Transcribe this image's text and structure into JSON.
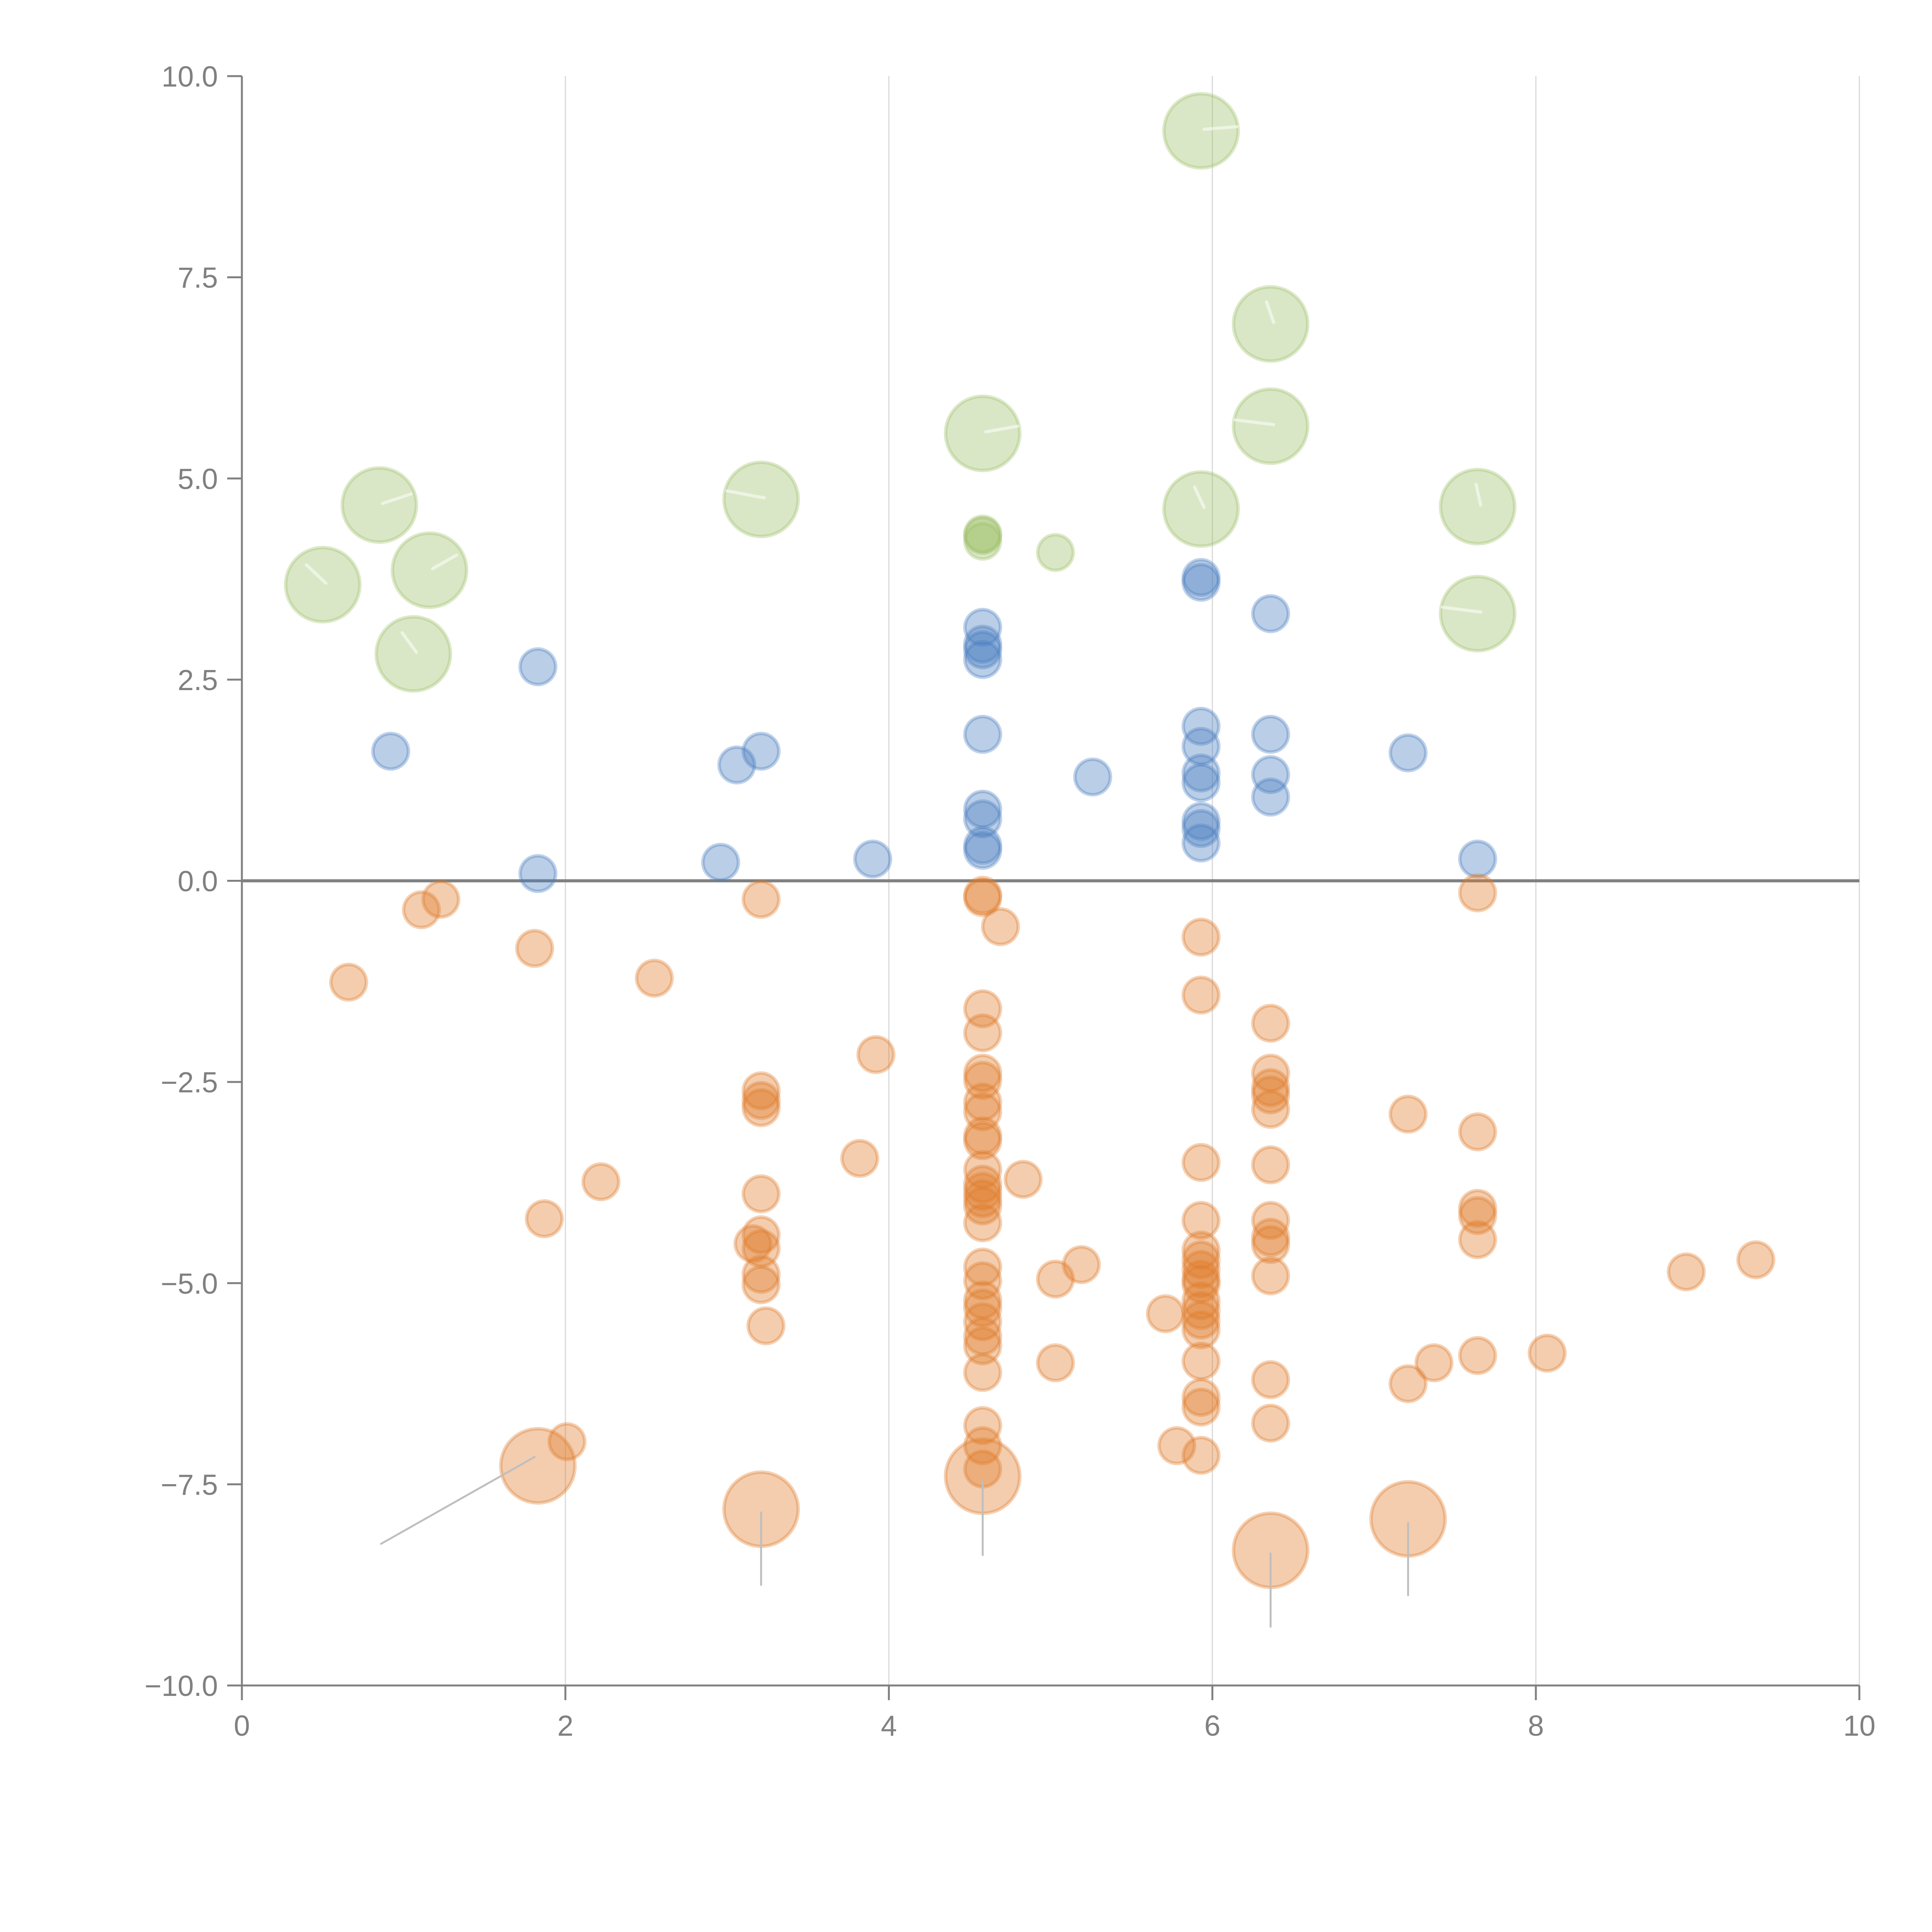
{
  "chart_data": {
    "type": "scatter",
    "title": "",
    "xlabel": "",
    "ylabel": "",
    "xlim": [
      0,
      10
    ],
    "ylim": [
      -10,
      10
    ],
    "x_ticks": [
      "0",
      "2",
      "4",
      "6",
      "8",
      "10"
    ],
    "x_tick_values": [
      0,
      2,
      4,
      6,
      8,
      10
    ],
    "y_ticks": [
      "−10.0",
      "−7.5",
      "−5.0",
      "−2.5",
      "0.0",
      "2.5",
      "5.0",
      "7.5",
      "10.0"
    ],
    "y_tick_values": [
      -10,
      -7.5,
      -5,
      -2.5,
      0,
      2.5,
      5,
      7.5,
      10
    ],
    "vertical_grid": true,
    "horizontal_grid": false,
    "zero_line": true,
    "legend": "none",
    "series": [
      {
        "name": "green",
        "color": "#9dc06a",
        "points": [
          {
            "x": 0.5,
            "y": 3.68,
            "size": "large"
          },
          {
            "x": 0.85,
            "y": 4.67,
            "size": "large"
          },
          {
            "x": 1.16,
            "y": 3.86,
            "size": "large"
          },
          {
            "x": 1.06,
            "y": 2.82,
            "size": "large"
          },
          {
            "x": 3.21,
            "y": 4.74,
            "size": "large"
          },
          {
            "x": 4.58,
            "y": 5.56,
            "size": "large"
          },
          {
            "x": 4.58,
            "y": 4.29,
            "size": "small"
          },
          {
            "x": 4.58,
            "y": 4.22,
            "size": "small"
          },
          {
            "x": 4.58,
            "y": 4.31,
            "size": "small"
          },
          {
            "x": 5.03,
            "y": 4.08,
            "size": "small"
          },
          {
            "x": 5.93,
            "y": 9.32,
            "size": "large"
          },
          {
            "x": 5.93,
            "y": 4.62,
            "size": "large"
          },
          {
            "x": 6.36,
            "y": 6.92,
            "size": "large"
          },
          {
            "x": 6.36,
            "y": 5.65,
            "size": "large"
          },
          {
            "x": 7.64,
            "y": 4.65,
            "size": "large"
          },
          {
            "x": 7.64,
            "y": 3.32,
            "size": "large"
          }
        ]
      },
      {
        "name": "blue",
        "color": "#4a7fc1",
        "points": [
          {
            "x": 0.92,
            "y": 1.61,
            "size": "small"
          },
          {
            "x": 1.83,
            "y": 2.66,
            "size": "small"
          },
          {
            "x": 1.83,
            "y": 0.09,
            "size": "small"
          },
          {
            "x": 2.96,
            "y": 0.23,
            "size": "small"
          },
          {
            "x": 3.06,
            "y": 1.44,
            "size": "small"
          },
          {
            "x": 3.21,
            "y": 1.61,
            "size": "small"
          },
          {
            "x": 3.9,
            "y": 0.27,
            "size": "small"
          },
          {
            "x": 4.58,
            "y": 3.15,
            "size": "small"
          },
          {
            "x": 4.58,
            "y": 2.94,
            "size": "small"
          },
          {
            "x": 4.58,
            "y": 2.87,
            "size": "small"
          },
          {
            "x": 4.58,
            "y": 2.75,
            "size": "small"
          },
          {
            "x": 4.58,
            "y": 1.82,
            "size": "small"
          },
          {
            "x": 4.58,
            "y": 0.89,
            "size": "small"
          },
          {
            "x": 4.58,
            "y": 0.77,
            "size": "small"
          },
          {
            "x": 4.58,
            "y": 0.44,
            "size": "small"
          },
          {
            "x": 4.58,
            "y": 0.38,
            "size": "small"
          },
          {
            "x": 5.26,
            "y": 1.29,
            "size": "small"
          },
          {
            "x": 5.93,
            "y": 3.77,
            "size": "small"
          },
          {
            "x": 5.93,
            "y": 3.71,
            "size": "small"
          },
          {
            "x": 5.93,
            "y": 1.92,
            "size": "small"
          },
          {
            "x": 5.93,
            "y": 1.67,
            "size": "small"
          },
          {
            "x": 5.93,
            "y": 1.34,
            "size": "small"
          },
          {
            "x": 5.93,
            "y": 1.22,
            "size": "small"
          },
          {
            "x": 5.93,
            "y": 0.74,
            "size": "small"
          },
          {
            "x": 5.93,
            "y": 0.65,
            "size": "small"
          },
          {
            "x": 5.93,
            "y": 0.47,
            "size": "small"
          },
          {
            "x": 6.36,
            "y": 3.32,
            "size": "small"
          },
          {
            "x": 6.36,
            "y": 1.82,
            "size": "small"
          },
          {
            "x": 6.36,
            "y": 1.32,
            "size": "small"
          },
          {
            "x": 6.36,
            "y": 1.04,
            "size": "small"
          },
          {
            "x": 7.21,
            "y": 1.59,
            "size": "small"
          },
          {
            "x": 7.64,
            "y": 0.27,
            "size": "small"
          }
        ]
      },
      {
        "name": "orange",
        "color": "#e07b2a",
        "points": [
          {
            "x": 0.66,
            "y": -1.26,
            "size": "small"
          },
          {
            "x": 1.11,
            "y": -0.36,
            "size": "small"
          },
          {
            "x": 1.23,
            "y": -0.23,
            "size": "small"
          },
          {
            "x": 1.81,
            "y": -0.84,
            "size": "small"
          },
          {
            "x": 1.87,
            "y": -4.2,
            "size": "small"
          },
          {
            "x": 2.01,
            "y": -6.97,
            "size": "small"
          },
          {
            "x": 2.22,
            "y": -3.74,
            "size": "small"
          },
          {
            "x": 2.55,
            "y": -1.21,
            "size": "small"
          },
          {
            "x": 3.21,
            "y": -0.23,
            "size": "small"
          },
          {
            "x": 3.21,
            "y": -2.61,
            "size": "small"
          },
          {
            "x": 3.21,
            "y": -2.73,
            "size": "small"
          },
          {
            "x": 3.21,
            "y": -2.82,
            "size": "small"
          },
          {
            "x": 3.21,
            "y": -3.89,
            "size": "small"
          },
          {
            "x": 3.21,
            "y": -4.4,
            "size": "small"
          },
          {
            "x": 3.16,
            "y": -4.51,
            "size": "small"
          },
          {
            "x": 3.21,
            "y": -4.57,
            "size": "small"
          },
          {
            "x": 3.21,
            "y": -4.89,
            "size": "small"
          },
          {
            "x": 3.21,
            "y": -5.02,
            "size": "small"
          },
          {
            "x": 3.24,
            "y": -5.53,
            "size": "small"
          },
          {
            "x": 3.82,
            "y": -3.45,
            "size": "small"
          },
          {
            "x": 3.92,
            "y": -2.16,
            "size": "small"
          },
          {
            "x": 4.58,
            "y": -0.18,
            "size": "small"
          },
          {
            "x": 4.58,
            "y": -0.21,
            "size": "small"
          },
          {
            "x": 4.69,
            "y": -0.57,
            "size": "small"
          },
          {
            "x": 4.58,
            "y": -1.59,
            "size": "small"
          },
          {
            "x": 4.58,
            "y": -1.89,
            "size": "small"
          },
          {
            "x": 4.58,
            "y": -2.39,
            "size": "small"
          },
          {
            "x": 4.58,
            "y": -2.48,
            "size": "small"
          },
          {
            "x": 4.58,
            "y": -2.75,
            "size": "small"
          },
          {
            "x": 4.58,
            "y": -2.87,
            "size": "small"
          },
          {
            "x": 4.58,
            "y": -3.17,
            "size": "small"
          },
          {
            "x": 4.58,
            "y": -3.23,
            "size": "small"
          },
          {
            "x": 4.58,
            "y": -3.59,
            "size": "small"
          },
          {
            "x": 4.58,
            "y": -3.77,
            "size": "small"
          },
          {
            "x": 4.58,
            "y": -3.86,
            "size": "small"
          },
          {
            "x": 4.58,
            "y": -3.95,
            "size": "small"
          },
          {
            "x": 4.58,
            "y": -4.04,
            "size": "small"
          },
          {
            "x": 4.58,
            "y": -4.25,
            "size": "small"
          },
          {
            "x": 4.83,
            "y": -3.71,
            "size": "small"
          },
          {
            "x": 4.58,
            "y": -4.8,
            "size": "small"
          },
          {
            "x": 4.58,
            "y": -4.97,
            "size": "small"
          },
          {
            "x": 4.58,
            "y": -5.21,
            "size": "small"
          },
          {
            "x": 4.58,
            "y": -5.31,
            "size": "small"
          },
          {
            "x": 4.58,
            "y": -5.48,
            "size": "small"
          },
          {
            "x": 4.58,
            "y": -5.66,
            "size": "small"
          },
          {
            "x": 4.58,
            "y": -5.78,
            "size": "small"
          },
          {
            "x": 4.58,
            "y": -6.11,
            "size": "small"
          },
          {
            "x": 4.58,
            "y": -6.77,
            "size": "small"
          },
          {
            "x": 4.58,
            "y": -7.02,
            "size": "small"
          },
          {
            "x": 4.58,
            "y": -7.31,
            "size": "small"
          },
          {
            "x": 5.03,
            "y": -4.95,
            "size": "small"
          },
          {
            "x": 5.03,
            "y": -5.99,
            "size": "small"
          },
          {
            "x": 5.19,
            "y": -4.77,
            "size": "small"
          },
          {
            "x": 5.71,
            "y": -5.38,
            "size": "small"
          },
          {
            "x": 5.78,
            "y": -7.02,
            "size": "small"
          },
          {
            "x": 5.93,
            "y": -0.7,
            "size": "small"
          },
          {
            "x": 5.93,
            "y": -1.42,
            "size": "small"
          },
          {
            "x": 5.93,
            "y": -3.5,
            "size": "small"
          },
          {
            "x": 5.93,
            "y": -4.22,
            "size": "small"
          },
          {
            "x": 5.93,
            "y": -4.59,
            "size": "small"
          },
          {
            "x": 5.93,
            "y": -4.71,
            "size": "small"
          },
          {
            "x": 5.93,
            "y": -4.83,
            "size": "small"
          },
          {
            "x": 5.93,
            "y": -4.95,
            "size": "small"
          },
          {
            "x": 5.93,
            "y": -5.01,
            "size": "small"
          },
          {
            "x": 5.93,
            "y": -5.22,
            "size": "small"
          },
          {
            "x": 5.93,
            "y": -5.34,
            "size": "small"
          },
          {
            "x": 5.93,
            "y": -5.46,
            "size": "small"
          },
          {
            "x": 5.93,
            "y": -5.58,
            "size": "small"
          },
          {
            "x": 5.93,
            "y": -5.97,
            "size": "small"
          },
          {
            "x": 5.93,
            "y": -6.42,
            "size": "small"
          },
          {
            "x": 5.93,
            "y": -6.54,
            "size": "small"
          },
          {
            "x": 5.93,
            "y": -7.14,
            "size": "small"
          },
          {
            "x": 6.36,
            "y": -1.77,
            "size": "small"
          },
          {
            "x": 6.36,
            "y": -2.39,
            "size": "small"
          },
          {
            "x": 6.36,
            "y": -2.57,
            "size": "small"
          },
          {
            "x": 6.36,
            "y": -2.66,
            "size": "small"
          },
          {
            "x": 6.36,
            "y": -2.84,
            "size": "small"
          },
          {
            "x": 6.36,
            "y": -3.53,
            "size": "small"
          },
          {
            "x": 6.36,
            "y": -4.22,
            "size": "small"
          },
          {
            "x": 6.36,
            "y": -4.43,
            "size": "small"
          },
          {
            "x": 6.36,
            "y": -4.52,
            "size": "small"
          },
          {
            "x": 6.36,
            "y": -4.91,
            "size": "small"
          },
          {
            "x": 6.36,
            "y": -6.2,
            "size": "small"
          },
          {
            "x": 6.36,
            "y": -6.74,
            "size": "small"
          },
          {
            "x": 7.21,
            "y": -2.9,
            "size": "small"
          },
          {
            "x": 7.21,
            "y": -6.25,
            "size": "small"
          },
          {
            "x": 7.37,
            "y": -5.99,
            "size": "small"
          },
          {
            "x": 7.64,
            "y": -0.15,
            "size": "small"
          },
          {
            "x": 7.64,
            "y": -3.12,
            "size": "small"
          },
          {
            "x": 7.64,
            "y": -4.07,
            "size": "small"
          },
          {
            "x": 7.64,
            "y": -4.16,
            "size": "small"
          },
          {
            "x": 7.64,
            "y": -4.46,
            "size": "small"
          },
          {
            "x": 7.64,
            "y": -5.9,
            "size": "small"
          },
          {
            "x": 8.07,
            "y": -5.87,
            "size": "small"
          },
          {
            "x": 8.93,
            "y": -4.86,
            "size": "small"
          },
          {
            "x": 9.36,
            "y": -4.71,
            "size": "small"
          },
          {
            "x": 1.83,
            "y": -7.27,
            "size": "large"
          },
          {
            "x": 3.21,
            "y": -7.81,
            "size": "large"
          },
          {
            "x": 4.58,
            "y": -7.4,
            "size": "large"
          },
          {
            "x": 6.36,
            "y": -8.32,
            "size": "large"
          },
          {
            "x": 7.21,
            "y": -7.93,
            "size": "large"
          }
        ]
      }
    ],
    "annotations": [
      {
        "type": "leader-line",
        "from": [
          1.81,
          -7.16
        ],
        "to": [
          0.86,
          -8.24
        ]
      },
      {
        "type": "leader-line",
        "from": [
          3.21,
          -7.85
        ],
        "to": [
          3.21,
          -8.75
        ]
      },
      {
        "type": "leader-line",
        "from": [
          4.58,
          -7.48
        ],
        "to": [
          4.58,
          -8.38
        ]
      },
      {
        "type": "leader-line",
        "from": [
          6.36,
          -8.36
        ],
        "to": [
          6.36,
          -9.27
        ]
      },
      {
        "type": "leader-line",
        "from": [
          7.21,
          -7.98
        ],
        "to": [
          7.21,
          -8.88
        ]
      }
    ]
  }
}
